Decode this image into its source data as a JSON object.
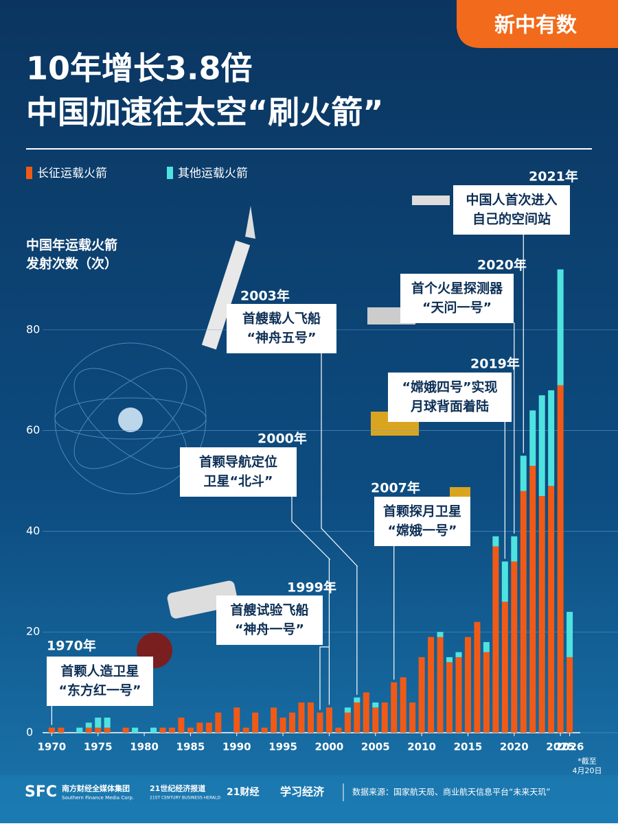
{
  "brand": "新中有数",
  "header": {
    "title_lines": [
      "10年增长3.8倍",
      "中国加速往太空“刷火箭”"
    ]
  },
  "chart_data": {
    "type": "bar",
    "stacked": true,
    "y_label_lines": [
      "中国年运载火箭",
      "发射次数（次）"
    ],
    "note_lines": [
      "*截至",
      "4月20日"
    ],
    "x": [
      1970,
      1971,
      1972,
      1973,
      1974,
      1975,
      1976,
      1977,
      1978,
      1979,
      1980,
      1981,
      1982,
      1983,
      1984,
      1985,
      1986,
      1987,
      1988,
      1989,
      1990,
      1991,
      1992,
      1993,
      1994,
      1995,
      1996,
      1997,
      1998,
      1999,
      2000,
      2001,
      2002,
      2003,
      2004,
      2005,
      2006,
      2007,
      2008,
      2009,
      2010,
      2011,
      2012,
      2013,
      2014,
      2015,
      2016,
      2017,
      2018,
      2019,
      2020,
      2021,
      2022,
      2023,
      2024,
      2025,
      2026
    ],
    "series": [
      {
        "name": "长征运载火箭",
        "color": "#f15a16",
        "values": [
          1,
          1,
          0,
          0,
          1,
          1,
          1,
          0,
          1,
          0,
          0,
          0,
          1,
          1,
          3,
          1,
          2,
          2,
          4,
          0,
          5,
          1,
          4,
          1,
          5,
          3,
          4,
          6,
          6,
          4,
          5,
          1,
          4,
          6,
          8,
          5,
          6,
          10,
          11,
          6,
          15,
          19,
          19,
          14,
          15,
          19,
          22,
          16,
          37,
          26,
          34,
          48,
          53,
          47,
          49,
          69,
          15
        ]
      },
      {
        "name": "其他运载火箭",
        "color": "#4fe3e0",
        "values": [
          0,
          0,
          0,
          1,
          1,
          2,
          2,
          0,
          0,
          1,
          0,
          1,
          0,
          0,
          0,
          0,
          0,
          0,
          0,
          0,
          0,
          0,
          0,
          0,
          0,
          0,
          0,
          0,
          0,
          0,
          0,
          0,
          1,
          1,
          0,
          1,
          0,
          0,
          0,
          0,
          0,
          0,
          1,
          1,
          1,
          0,
          0,
          2,
          2,
          8,
          5,
          7,
          11,
          20,
          19,
          23,
          9
        ]
      }
    ],
    "xlim": [
      1969.6,
      2026.4
    ],
    "xticks": [
      1970,
      1975,
      1980,
      1985,
      1990,
      1995,
      2000,
      2005,
      2010,
      2015,
      2020,
      2025,
      2026
    ],
    "ylim": [
      0,
      100
    ],
    "yticks": [
      0,
      20,
      40,
      60,
      80
    ],
    "grid": true,
    "annotations": [
      {
        "year": 1970,
        "label": "1970年",
        "lines": [
          "首颗人造卫星",
          "“东方红一号”"
        ]
      },
      {
        "year": 1999,
        "label": "1999年",
        "lines": [
          "首艘试验飞船",
          "“神舟一号”"
        ]
      },
      {
        "year": 2000,
        "label": "2000年",
        "lines": [
          "首颗导航定位",
          "卫星“北斗”"
        ]
      },
      {
        "year": 2003,
        "label": "2003年",
        "lines": [
          "首艘载人飞船",
          "“神舟五号”"
        ]
      },
      {
        "year": 2007,
        "label": "2007年",
        "lines": [
          "首颗探月卫星",
          "“嫦娥一号”"
        ]
      },
      {
        "year": 2019,
        "label": "2019年",
        "lines": [
          "“嫦娥四号”实现",
          "月球背面着陆"
        ]
      },
      {
        "year": 2020,
        "label": "2020年",
        "lines": [
          "首个火星探测器",
          "“天问一号”"
        ]
      },
      {
        "year": 2021,
        "label": "2021年",
        "lines": [
          "中国人首次进入",
          "自己的空间站"
        ]
      }
    ]
  },
  "footer": {
    "sfc": "SFC",
    "sfc_cn": "南方财经全媒体集团",
    "sfc_en": "Southern Finance Media Corp.",
    "h21": "21世纪经济报道",
    "h21_en": "21ST CENTURY BUSINESS HERALD",
    "cj21": "21财经",
    "xxjj": "学习经济",
    "source": "数据来源：国家航天局、商业航天信息平台“未来天玑”"
  }
}
